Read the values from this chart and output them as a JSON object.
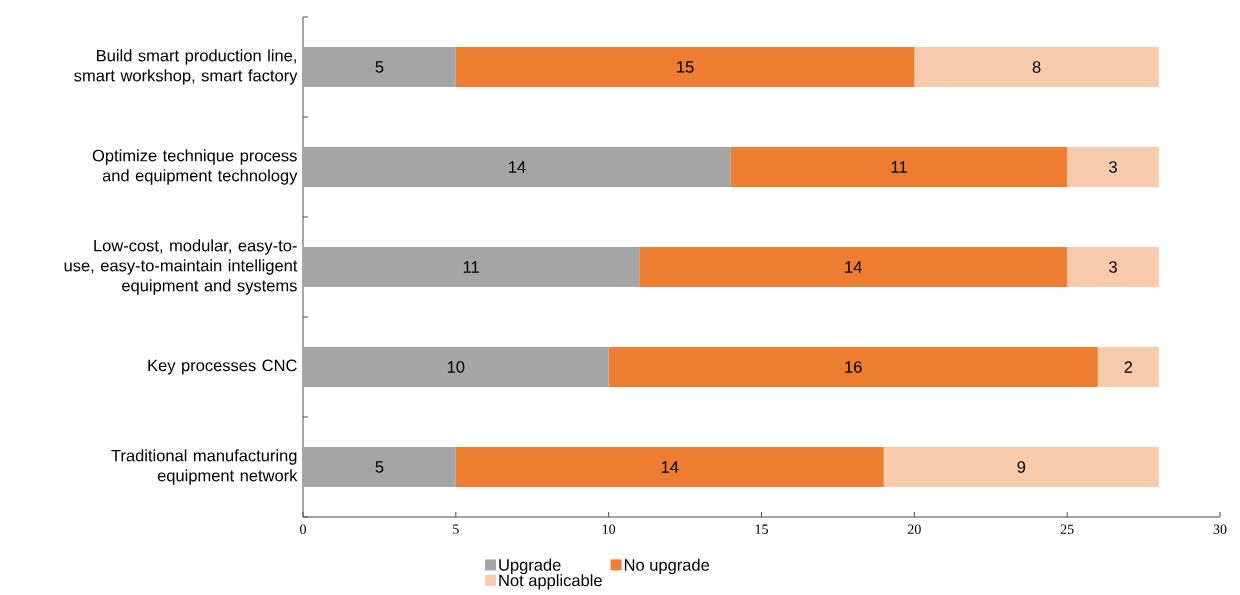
{
  "chart_data": {
    "type": "bar",
    "orientation": "horizontal",
    "stacked": true,
    "data_labels": true,
    "legend": "bottom",
    "grid": false,
    "categories": [
      "Build smart production line, smart workshop, smart factory",
      "Optimize technique process and equipment technology",
      "Low-cost, modular, easy-to-use, easy-to-maintain intelligent equipment and systems",
      "Key processes CNC",
      "Traditional manufacturing equipment network"
    ],
    "series": [
      {
        "name": "Upgrade",
        "color": "#a5a5a5",
        "values": [
          5,
          14,
          11,
          10,
          5
        ]
      },
      {
        "name": "No upgrade",
        "color": "#ed7d31",
        "values": [
          15,
          11,
          14,
          16,
          14
        ]
      },
      {
        "name": "Not applicable",
        "color": "#f8cbad",
        "values": [
          8,
          3,
          3,
          2,
          9
        ]
      }
    ],
    "xlim": [
      0,
      30
    ],
    "xticks": [
      0,
      5,
      10,
      15,
      20,
      25,
      30
    ]
  }
}
